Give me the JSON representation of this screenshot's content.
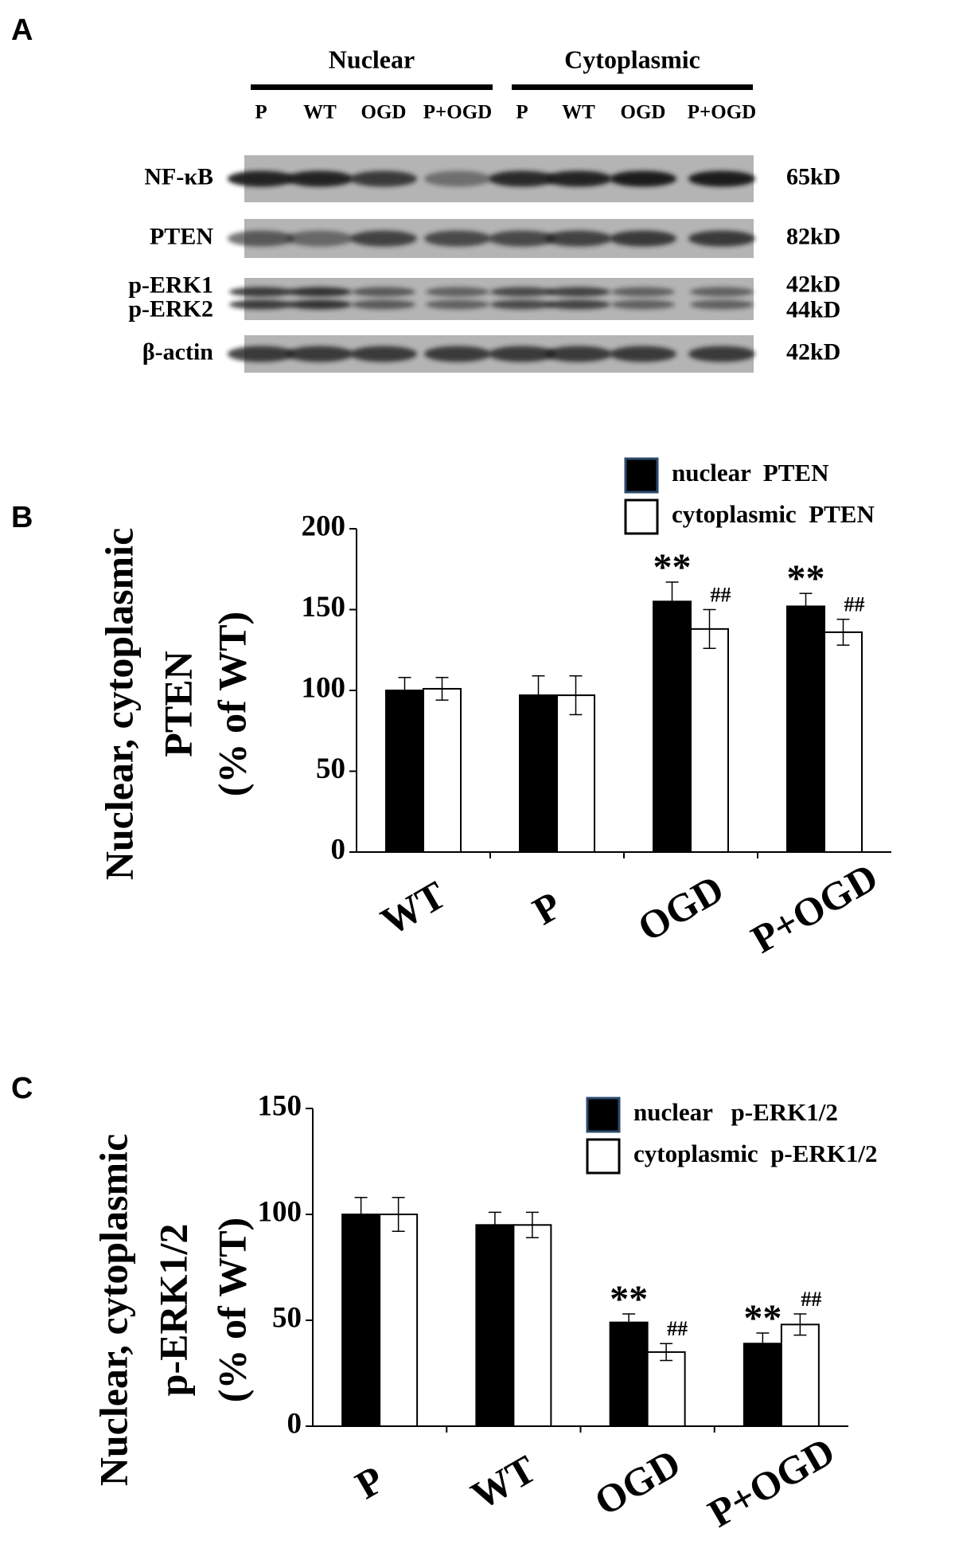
{
  "panel_labels": [
    "A",
    "B",
    "C"
  ],
  "blot": {
    "groups": [
      "Nuclear",
      "Cytoplasmic"
    ],
    "lanes": [
      "P",
      "WT",
      "OGD",
      "P+OGD",
      "P",
      "WT",
      "OGD",
      "P+OGD"
    ],
    "rows": [
      {
        "labels": [
          "NF-κB"
        ],
        "sizes": [
          "65kD"
        ]
      },
      {
        "labels": [
          "PTEN"
        ],
        "sizes": [
          "82kD"
        ]
      },
      {
        "labels": [
          "p-ERK1",
          "p-ERK2"
        ],
        "sizes": [
          "42kD",
          "44kD"
        ]
      },
      {
        "labels": [
          "β-actin"
        ],
        "sizes": [
          "42kD"
        ]
      }
    ]
  },
  "chart_data": [
    {
      "type": "bar",
      "ylabel": [
        "Nuclear, cytoplasmic",
        "PTEN",
        "(% of WT)"
      ],
      "categories": [
        "WT",
        "P",
        "OGD",
        "P+OGD"
      ],
      "series": [
        {
          "name": "nuclear  PTEN",
          "color": "#000000",
          "values": [
            100,
            97,
            155,
            152
          ],
          "errors": [
            8,
            12,
            12,
            8
          ],
          "labels": [
            null,
            null,
            "**",
            "**"
          ]
        },
        {
          "name": "cytoplasmic  PTEN",
          "color": "#ffffff",
          "values": [
            101,
            97,
            138,
            136
          ],
          "errors": [
            7,
            12,
            12,
            8
          ],
          "labels": [
            null,
            null,
            "##",
            "##"
          ]
        }
      ],
      "ylim": [
        0,
        200
      ],
      "yticks": [
        0,
        50,
        100,
        150,
        200
      ]
    },
    {
      "type": "bar",
      "ylabel": [
        "Nuclear, cytoplasmic",
        "p-ERK1/2",
        "(% of WT)"
      ],
      "categories": [
        "P",
        "WT",
        "OGD",
        "P+OGD"
      ],
      "series": [
        {
          "name": "nuclear   p-ERK1/2",
          "color": "#000000",
          "values": [
            100,
            95,
            49,
            39
          ],
          "errors": [
            8,
            6,
            4,
            5
          ],
          "labels": [
            null,
            null,
            "**",
            "**"
          ]
        },
        {
          "name": "cytoplasmic  p-ERK1/2",
          "color": "#ffffff",
          "values": [
            100,
            95,
            35,
            48
          ],
          "errors": [
            8,
            6,
            4,
            5
          ],
          "labels": [
            null,
            null,
            "##",
            "##"
          ]
        }
      ],
      "ylim": [
        0,
        150
      ],
      "yticks": [
        0,
        50,
        100,
        150
      ]
    }
  ]
}
